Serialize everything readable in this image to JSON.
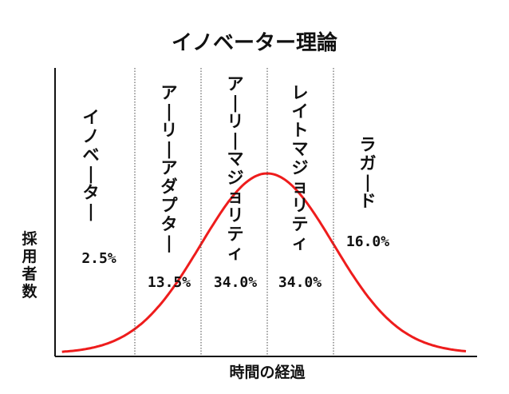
{
  "chart_data": {
    "type": "line",
    "title": "イノベーター理論",
    "xlabel": "時間の経過",
    "ylabel": "採用者数",
    "segments": [
      {
        "name": "イノベーター",
        "share": "2.5%"
      },
      {
        "name": "アーリーアダプター",
        "share": "13.5%"
      },
      {
        "name": "アーリーマジョリティ",
        "share": "34.0%"
      },
      {
        "name": "レイトマジョリティ",
        "share": "34.0%"
      },
      {
        "name": "ラガード",
        "share": "16.0%"
      }
    ],
    "boundaries_sd": [
      -2,
      -1,
      0,
      1
    ],
    "x_range_sd": [
      -3.1,
      3
    ],
    "curve": "normal-distribution",
    "grid": false,
    "line_color": "#ee1c1c"
  }
}
